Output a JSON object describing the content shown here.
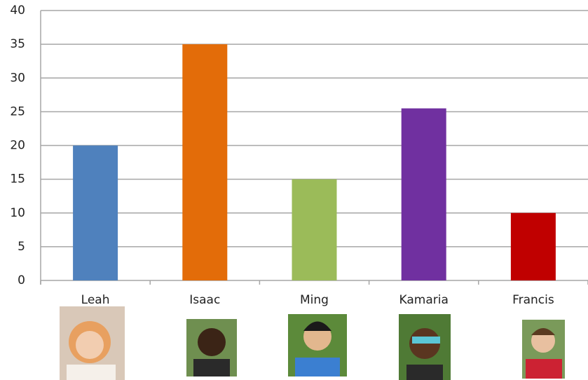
{
  "chart_data": {
    "type": "bar",
    "categories": [
      "Leah",
      "Isaac",
      "Ming",
      "Kamaria",
      "Francis"
    ],
    "values": [
      20,
      35,
      15,
      25.5,
      10
    ],
    "colors": [
      "#4f81bd",
      "#e36c09",
      "#9bbb59",
      "#7030a0",
      "#c00000"
    ],
    "ylim": [
      0,
      40
    ],
    "yticks": [
      0,
      5,
      10,
      15,
      20,
      25,
      30,
      35,
      40
    ],
    "grid": true
  }
}
